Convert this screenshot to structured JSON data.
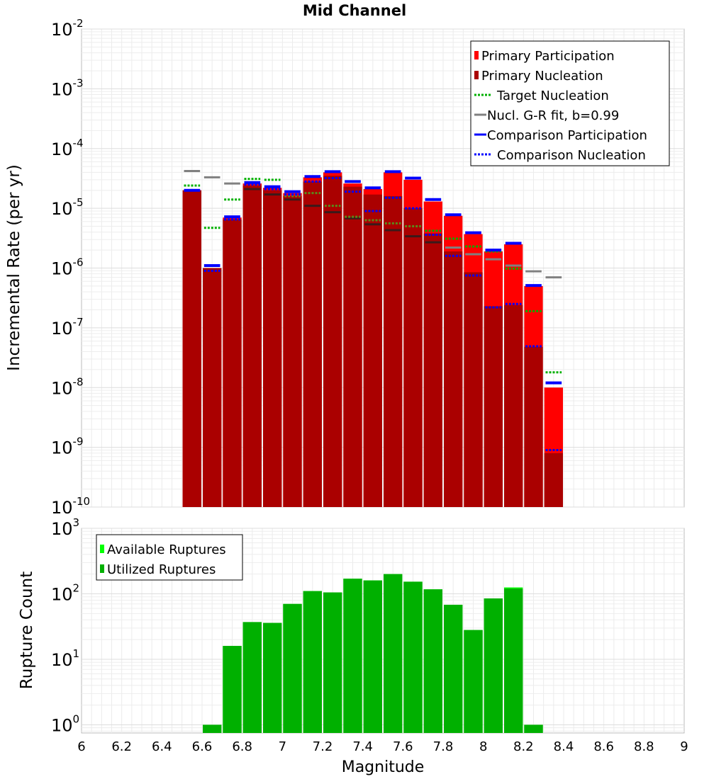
{
  "chart_data": [
    {
      "type": "bar",
      "title": "Mid Channel",
      "xlabel": "",
      "ylabel": "Incremental Rate (per yr)",
      "yscale": "log",
      "xlim": [
        6,
        9
      ],
      "ylim": [
        1e-10,
        0.01
      ],
      "y_ticks": [
        {
          "base": "10",
          "exp": "-2"
        },
        {
          "base": "10",
          "exp": "-3"
        },
        {
          "base": "10",
          "exp": "-4"
        },
        {
          "base": "10",
          "exp": "-5"
        },
        {
          "base": "10",
          "exp": "-6"
        },
        {
          "base": "10",
          "exp": "-7"
        },
        {
          "base": "10",
          "exp": "-8"
        },
        {
          "base": "10",
          "exp": "-9"
        },
        {
          "base": "10",
          "exp": "-10"
        }
      ],
      "grid": true,
      "legend_position": "top-right",
      "legend": [
        {
          "label": "Primary Participation",
          "kind": "box",
          "color": "#ff0000"
        },
        {
          "label": "Primary Nucleation",
          "kind": "box",
          "color": "#aa0000"
        },
        {
          "label": "Target Nucleation",
          "kind": "dotted",
          "color": "#00b000"
        },
        {
          "label": "Nucl. G-R fit, b=0.99",
          "kind": "solid",
          "color": "#808080"
        },
        {
          "label": "Comparison Participation",
          "kind": "solid",
          "color": "#0000ff"
        },
        {
          "label": "Comparison Nucleation",
          "kind": "dotted",
          "color": "#0000ff"
        }
      ],
      "x": [
        6.55,
        6.65,
        6.75,
        6.85,
        6.95,
        7.05,
        7.15,
        7.25,
        7.35,
        7.45,
        7.55,
        7.65,
        7.75,
        7.85,
        7.95,
        8.05,
        8.15,
        8.25,
        8.35
      ],
      "series": [
        {
          "name": "Primary Participation",
          "color": "#ff0000",
          "values": [
            2e-05,
            1e-06,
            7e-06,
            2.6e-05,
            2.2e-05,
            1.8e-05,
            3.3e-05,
            4e-05,
            2.6e-05,
            2.1e-05,
            4e-05,
            3e-05,
            1.3e-05,
            7.5e-06,
            3.7e-06,
            1.9e-06,
            2.5e-06,
            5e-07,
            1e-08
          ]
        },
        {
          "name": "Primary Nucleation",
          "color": "#aa0000",
          "values": [
            2e-05,
            1e-06,
            6.5e-06,
            2.4e-05,
            2e-05,
            1.6e-05,
            2.8e-05,
            3.5e-05,
            2.3e-05,
            1.7e-05,
            1.6e-05,
            1e-05,
            3.8e-06,
            1.9e-06,
            8.5e-07,
            2.3e-07,
            2.4e-07,
            4.8e-08,
            8e-10
          ]
        },
        {
          "name": "Target Nucleation",
          "color": "#00b000",
          "values": [
            2.4e-05,
            4.7e-06,
            1.4e-05,
            3.1e-05,
            3e-05,
            1.6e-05,
            1.8e-05,
            1.1e-05,
            7.2e-06,
            6.3e-06,
            5.6e-06,
            5e-06,
            4.2e-06,
            3.1e-06,
            2.3e-06,
            1.9e-06,
            9.8e-07,
            1.9e-07,
            1.8e-08
          ]
        },
        {
          "name": "Nucl. G-R fit, b=0.99",
          "color": "#808080",
          "values": [
            4.2e-05,
            3.3e-05,
            2.6e-05,
            2.1e-05,
            1.7e-05,
            1.4e-05,
            1.1e-05,
            8.6e-06,
            6.8e-06,
            5.4e-06,
            4.3e-06,
            3.4e-06,
            2.7e-06,
            2.2e-06,
            1.7e-06,
            1.4e-06,
            1.1e-06,
            8.8e-07,
            7e-07
          ]
        },
        {
          "name": "Comparison Participation",
          "color": "#0000ff",
          "values": [
            2e-05,
            1.1e-06,
            7.2e-06,
            2.7e-05,
            2.3e-05,
            1.9e-05,
            3.4e-05,
            4.1e-05,
            2.8e-05,
            2.2e-05,
            4.1e-05,
            3.2e-05,
            1.4e-05,
            7.8e-06,
            3.9e-06,
            2e-06,
            2.6e-06,
            5.1e-07,
            1.2e-08
          ]
        },
        {
          "name": "Comparison Nucleation",
          "color": "#0000ff",
          "values": [
            2e-05,
            9e-07,
            6.5e-06,
            2.5e-05,
            2.1e-05,
            1.7e-05,
            2.8e-05,
            3.2e-05,
            1.9e-05,
            9e-06,
            1.5e-05,
            1e-05,
            3.6e-06,
            1.6e-06,
            7.5e-07,
            2.2e-07,
            2.5e-07,
            4.9e-08,
            9e-10
          ]
        }
      ]
    },
    {
      "type": "bar",
      "title": "",
      "xlabel": "Magnitude",
      "ylabel": "Rupture Count",
      "yscale": "log",
      "xlim": [
        6,
        9
      ],
      "ylim": [
        0.75,
        1000
      ],
      "x_ticks": [
        "6",
        "6.2",
        "6.4",
        "6.6",
        "6.8",
        "7",
        "7.2",
        "7.4",
        "7.6",
        "7.8",
        "8",
        "8.2",
        "8.4",
        "8.6",
        "8.8",
        "9"
      ],
      "y_ticks": [
        {
          "base": "10",
          "exp": "3"
        },
        {
          "base": "10",
          "exp": "2"
        },
        {
          "base": "10",
          "exp": "1"
        },
        {
          "base": "10",
          "exp": "0"
        }
      ],
      "grid": true,
      "legend_position": "top-left",
      "legend": [
        {
          "label": "Available Ruptures",
          "kind": "box",
          "color": "#00ff00"
        },
        {
          "label": "Utilized Ruptures",
          "kind": "box",
          "color": "#00b000"
        }
      ],
      "x": [
        6.65,
        6.75,
        6.85,
        6.95,
        7.05,
        7.15,
        7.25,
        7.35,
        7.45,
        7.55,
        7.65,
        7.75,
        7.85,
        7.95,
        8.05,
        8.15,
        8.25
      ],
      "series": [
        {
          "name": "Available Ruptures",
          "color": "#00ff00",
          "values": [
            1,
            16,
            37,
            36,
            70,
            110,
            105,
            170,
            160,
            200,
            153,
            117,
            68,
            28,
            85,
            125,
            1
          ]
        },
        {
          "name": "Utilized Ruptures",
          "color": "#00b000",
          "values": [
            1,
            16,
            37,
            36,
            70,
            110,
            105,
            170,
            160,
            200,
            153,
            117,
            68,
            28,
            85,
            120,
            1
          ]
        }
      ]
    }
  ]
}
